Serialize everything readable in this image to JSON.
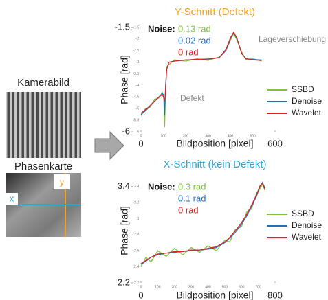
{
  "figure": {
    "camera_label": "Kamerabild",
    "phase_label": "Phasenkarte",
    "x_marker": "x",
    "y_marker": "y"
  },
  "chart_data": [
    {
      "type": "line",
      "title": "Y-Schnitt (Defekt)",
      "title_color": "#f0a020",
      "xlabel": "Bildposition [pixel]",
      "ylabel": "Phase [rad]",
      "xlim": [
        0,
        600
      ],
      "ylim": [
        -6,
        -1.5
      ],
      "xticks": [
        0,
        600
      ],
      "yticks": [
        -1.5,
        -6
      ],
      "minor_xticks": [
        0,
        100,
        200,
        300,
        400,
        500
      ],
      "minor_yticks": [
        -1.5,
        -2,
        -2.5,
        -3,
        -3.5,
        -4,
        -4.5,
        -5,
        -5.5,
        -6
      ],
      "noise_label": "Noise:",
      "noise": [
        "0.13 rad",
        "0.02 rad",
        "0 rad"
      ],
      "annotations": [
        "Lageverschiebung",
        "Defekt"
      ],
      "x": [
        0,
        20,
        40,
        60,
        80,
        95,
        102,
        106,
        110,
        115,
        125,
        150,
        200,
        250,
        300,
        350,
        380,
        400,
        415,
        430,
        450,
        470,
        500,
        540
      ],
      "series": [
        {
          "name": "SSBD",
          "color": "#7fc241",
          "values": [
            -5.3,
            -5.0,
            -4.95,
            -4.6,
            -4.55,
            -4.3,
            -4.6,
            -5.8,
            -4.1,
            -3.2,
            -3.1,
            -2.9,
            -2.95,
            -2.85,
            -2.92,
            -2.78,
            -2.5,
            -2.05,
            -1.78,
            -2.05,
            -2.55,
            -2.9,
            -2.85,
            -2.95
          ]
        },
        {
          "name": "Denoise",
          "color": "#1f6fbf",
          "values": [
            -5.25,
            -5.1,
            -4.9,
            -4.7,
            -4.5,
            -4.35,
            -4.4,
            -5.3,
            -4.0,
            -3.3,
            -3.0,
            -2.95,
            -2.9,
            -2.88,
            -2.87,
            -2.8,
            -2.5,
            -2.0,
            -1.72,
            -2.0,
            -2.6,
            -2.85,
            -2.88,
            -2.9
          ]
        },
        {
          "name": "Wavelet",
          "color": "#e02020",
          "values": [
            -5.2,
            -5.05,
            -4.88,
            -4.68,
            -4.5,
            -4.4,
            -4.5,
            -4.7,
            -4.2,
            -3.3,
            -3.0,
            -2.95,
            -2.9,
            -2.88,
            -2.86,
            -2.8,
            -2.45,
            -1.95,
            -1.7,
            -1.98,
            -2.62,
            -2.85,
            -2.9,
            -2.92
          ]
        }
      ]
    },
    {
      "type": "line",
      "title": "X-Schnitt (kein Defekt)",
      "title_color": "#29a6d8",
      "xlabel": "Bildposition [pixel]",
      "ylabel": "Phase [rad]",
      "xlim": [
        0,
        800
      ],
      "ylim": [
        2.2,
        3.5
      ],
      "xticks": [
        0,
        800
      ],
      "yticks": [
        3.4,
        2.2
      ],
      "minor_xticks": [
        0,
        100,
        200,
        300,
        400,
        500,
        600,
        700
      ],
      "minor_yticks": [
        2.2,
        2.4,
        2.6,
        2.8,
        3,
        3.2,
        3.4
      ],
      "noise_label": "Noise:",
      "noise": [
        "0.3 rad",
        "0.1 rad",
        "0 rad"
      ],
      "x": [
        0,
        30,
        60,
        100,
        150,
        200,
        250,
        300,
        350,
        400,
        450,
        500,
        530,
        560,
        600,
        630,
        660,
        690,
        710,
        725,
        740
      ],
      "series": [
        {
          "name": "SSBD",
          "color": "#7fc241",
          "values": [
            2.4,
            2.52,
            2.46,
            2.6,
            2.53,
            2.63,
            2.55,
            2.64,
            2.58,
            2.66,
            2.6,
            2.73,
            2.71,
            2.86,
            2.9,
            3.08,
            3.12,
            3.32,
            3.37,
            3.43,
            3.35
          ]
        },
        {
          "name": "Denoise",
          "color": "#1f6fbf",
          "values": [
            2.43,
            2.47,
            2.52,
            2.55,
            2.57,
            2.58,
            2.59,
            2.6,
            2.61,
            2.62,
            2.64,
            2.7,
            2.76,
            2.82,
            2.93,
            3.03,
            3.15,
            3.28,
            3.4,
            3.45,
            3.38
          ]
        },
        {
          "name": "Wavelet",
          "color": "#e02020",
          "values": [
            2.44,
            2.48,
            2.52,
            2.56,
            2.57,
            2.59,
            2.59,
            2.61,
            2.61,
            2.63,
            2.65,
            2.71,
            2.77,
            2.84,
            2.95,
            3.05,
            3.17,
            3.3,
            3.41,
            3.44,
            3.36
          ]
        }
      ]
    }
  ]
}
